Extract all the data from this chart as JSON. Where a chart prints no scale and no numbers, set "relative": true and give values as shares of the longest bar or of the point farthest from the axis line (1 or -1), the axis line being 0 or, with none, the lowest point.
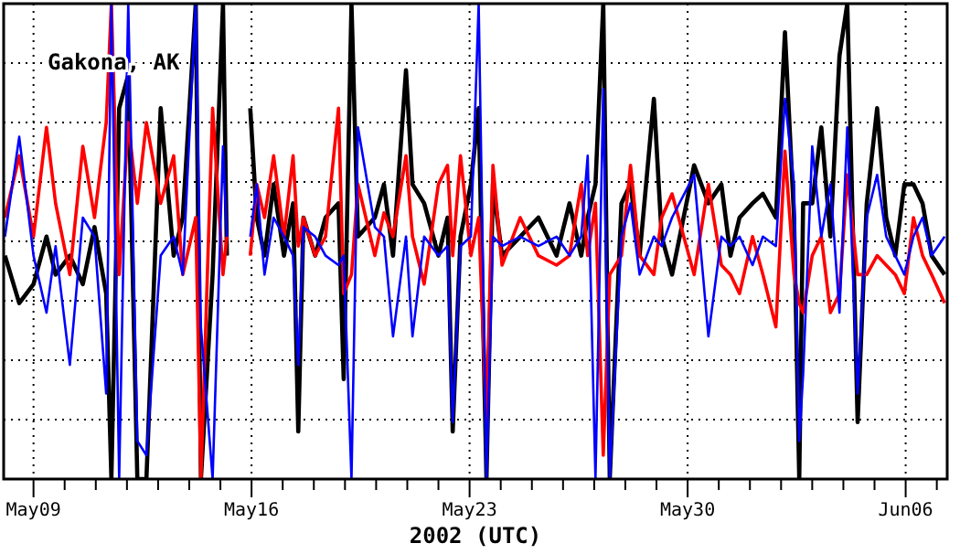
{
  "chart_data": {
    "type": "line",
    "title": "Gakona, AK",
    "xlabel": "2002 (UTC)",
    "relative": true,
    "grid": true,
    "xlim": [
      "2002-05-08T01:00",
      "2002-06-07T08:00"
    ],
    "xticks": [
      {
        "value": "2002-05-09",
        "label": "May09"
      },
      {
        "value": "2002-05-10",
        "label": null
      },
      {
        "value": "2002-05-11",
        "label": null
      },
      {
        "value": "2002-05-12",
        "label": null
      },
      {
        "value": "2002-05-13",
        "label": null
      },
      {
        "value": "2002-05-14",
        "label": null
      },
      {
        "value": "2002-05-15",
        "label": null
      },
      {
        "value": "2002-05-16",
        "label": "May16"
      },
      {
        "value": "2002-05-17",
        "label": null
      },
      {
        "value": "2002-05-18",
        "label": null
      },
      {
        "value": "2002-05-19",
        "label": null
      },
      {
        "value": "2002-05-20",
        "label": null
      },
      {
        "value": "2002-05-21",
        "label": null
      },
      {
        "value": "2002-05-22",
        "label": null
      },
      {
        "value": "2002-05-23",
        "label": "May23"
      },
      {
        "value": "2002-05-24",
        "label": null
      },
      {
        "value": "2002-05-25",
        "label": null
      },
      {
        "value": "2002-05-26",
        "label": null
      },
      {
        "value": "2002-05-27",
        "label": null
      },
      {
        "value": "2002-05-28",
        "label": null
      },
      {
        "value": "2002-05-29",
        "label": null
      },
      {
        "value": "2002-05-30",
        "label": "May30"
      },
      {
        "value": "2002-05-31",
        "label": null
      },
      {
        "value": "2002-06-01",
        "label": null
      },
      {
        "value": "2002-06-02",
        "label": null
      },
      {
        "value": "2002-06-03",
        "label": null
      },
      {
        "value": "2002-06-04",
        "label": null
      },
      {
        "value": "2002-06-05",
        "label": null
      },
      {
        "value": "2002-06-06",
        "label": "Jun06"
      },
      {
        "value": "2002-06-07",
        "label": null
      }
    ],
    "x": [
      "2002-05-08T02:00",
      "2002-05-08T13:00",
      "2002-05-09T00:00",
      "2002-05-09T10:00",
      "2002-05-09T17:00",
      "2002-05-10T04:00",
      "2002-05-10T14:00",
      "2002-05-10T23:00",
      "2002-05-11T08:00",
      "2002-05-11T12:00",
      "2002-05-11T18:00",
      "2002-05-12T01:00",
      "2002-05-12T08:00",
      "2002-05-12T15:00",
      "2002-05-13T02:00",
      "2002-05-13T12:00",
      "2002-05-13T19:00",
      "2002-05-14T05:00",
      "2002-05-14T09:00",
      "2002-05-14T18:00",
      "2002-05-15T02:00",
      "2002-05-15T05:00",
      "2002-05-15T12:00",
      "2002-05-15T23:00",
      "2002-05-16T04:00",
      "2002-05-16T10:00",
      "2002-05-16T17:00",
      "2002-05-17T01:00",
      "2002-05-17T08:00",
      "2002-05-17T12:00",
      "2002-05-17T16:00",
      "2002-05-18T01:00",
      "2002-05-18T09:00",
      "2002-05-18T19:00",
      "2002-05-18T23:00",
      "2002-05-19T05:00",
      "2002-05-19T10:00",
      "2002-05-19T23:00",
      "2002-05-20T06:00",
      "2002-05-20T13:00",
      "2002-05-20T23:00",
      "2002-05-21T04:00",
      "2002-05-21T13:00",
      "2002-05-22T00:00",
      "2002-05-22T07:00",
      "2002-05-22T11:00",
      "2002-05-22T17:00",
      "2002-05-23T01:00",
      "2002-05-23T07:00",
      "2002-05-23T13:00",
      "2002-05-23T18:00",
      "2002-05-24T01:00",
      "2002-05-24T15:00",
      "2002-05-25T05:00",
      "2002-05-25T19:00",
      "2002-05-26T05:00",
      "2002-05-26T14:00",
      "2002-05-26T19:00",
      "2002-05-27T01:00",
      "2002-05-27T07:00",
      "2002-05-27T12:00",
      "2002-05-27T21:00",
      "2002-05-28T04:00",
      "2002-05-28T11:00",
      "2002-05-28T22:00",
      "2002-05-29T04:00",
      "2002-05-29T12:00",
      "2002-05-30T05:00",
      "2002-05-30T16:00",
      "2002-05-31T02:00",
      "2002-05-31T09:00",
      "2002-05-31T16:00",
      "2002-06-01T02:00",
      "2002-06-01T10:00",
      "2002-06-01T20:00",
      "2002-06-02T03:00",
      "2002-06-02T10:00",
      "2002-06-02T14:00",
      "2002-06-02T17:00",
      "2002-06-03T00:00",
      "2002-06-03T07:00",
      "2002-06-03T14:00",
      "2002-06-03T21:00",
      "2002-06-04T03:00",
      "2002-06-04T11:00",
      "2002-06-04T18:00",
      "2002-06-05T02:00",
      "2002-06-05T09:00",
      "2002-06-05T16:00",
      "2002-06-05T23:00",
      "2002-06-06T06:00",
      "2002-06-06T13:00",
      "2002-06-06T20:00",
      "2002-06-07T06:00"
    ],
    "series": [
      {
        "color": "#000000",
        "values": [
          0.47,
          0.37,
          0.41,
          0.51,
          0.43,
          0.47,
          0.41,
          0.53,
          0.39,
          0,
          0.78,
          0.85,
          0,
          0,
          0.78,
          0.47,
          0.55,
          1,
          0,
          0.43,
          1,
          0.47,
          null,
          0.78,
          0.55,
          0.47,
          0.62,
          0.47,
          0.58,
          0.1,
          0.55,
          0.47,
          0.55,
          0.58,
          0.21,
          1,
          0.51,
          0.55,
          0.62,
          0.47,
          0.86,
          0.62,
          0.58,
          0.47,
          0.55,
          0.1,
          0.51,
          0.62,
          0.78,
          0,
          0.62,
          0.47,
          0.51,
          0.55,
          0.47,
          0.58,
          0.47,
          0.55,
          0.62,
          1,
          0,
          0.58,
          0.62,
          0.47,
          0.8,
          0.51,
          0.43,
          0.66,
          0.58,
          0.62,
          0.47,
          0.55,
          0.58,
          0.6,
          0.55,
          0.94,
          0.55,
          0,
          0.58,
          0.58,
          0.74,
          0.51,
          0.89,
          1,
          0.12,
          0.58,
          0.78,
          0.55,
          0.47,
          0.62,
          0.62,
          0.58,
          0.47,
          0.43
        ]
      },
      {
        "color": "#ff0000",
        "values": [
          0.55,
          0.68,
          0.51,
          0.74,
          0.58,
          0.43,
          0.7,
          0.55,
          0.75,
          1,
          0.43,
          0.75,
          0.58,
          0.75,
          0.58,
          0.68,
          0.43,
          0.55,
          0,
          0.78,
          0.43,
          0.51,
          null,
          0.47,
          0.62,
          0.55,
          0.68,
          0.51,
          0.68,
          0.49,
          0.55,
          0.47,
          0.51,
          0.78,
          0.39,
          0.43,
          0.62,
          0.47,
          0.56,
          0.51,
          0.68,
          0.51,
          0.41,
          0.62,
          0.66,
          0.47,
          0.68,
          0.47,
          0.55,
          0.12,
          0.66,
          0.45,
          0.55,
          0.47,
          0.45,
          0.47,
          0.62,
          0.47,
          0.58,
          0.05,
          0.43,
          0.47,
          0.66,
          0.47,
          0.43,
          0.55,
          0.6,
          0.43,
          0.62,
          0.45,
          0.43,
          0.39,
          0.51,
          0.43,
          0.32,
          0.69,
          0.43,
          0.37,
          0.35,
          0.47,
          0.51,
          0.35,
          0.39,
          0.64,
          0.43,
          0.43,
          0.47,
          0.45,
          0.43,
          0.39,
          0.55,
          0.47,
          0.43,
          0.37
        ]
      },
      {
        "color": "#0000ff",
        "values": [
          0.51,
          0.72,
          0.47,
          0.35,
          0.49,
          0.24,
          0.55,
          0.51,
          0.18,
          1,
          0,
          1,
          0.08,
          0.05,
          0.47,
          0.51,
          0.43,
          1,
          0.32,
          0,
          0.7,
          0.51,
          null,
          0.51,
          0.62,
          0.43,
          0.55,
          0.51,
          0.47,
          0.24,
          0.53,
          0.51,
          0.47,
          0.45,
          0.47,
          0,
          0.74,
          0.53,
          0.51,
          0.3,
          0.51,
          0.3,
          0.51,
          0.47,
          0.49,
          0.12,
          0.49,
          0.51,
          1,
          0,
          0.51,
          0.49,
          0.51,
          0.49,
          0.51,
          0.47,
          0.51,
          0.68,
          0,
          0.82,
          0,
          0.51,
          0.58,
          0.43,
          0.51,
          0.49,
          0.55,
          0.64,
          0.3,
          0.51,
          0.49,
          0.51,
          0.45,
          0.51,
          0.49,
          0.8,
          0.62,
          0.08,
          0.22,
          0.7,
          0.51,
          0.62,
          0.35,
          0.74,
          0.18,
          0.55,
          0.64,
          0.51,
          0.47,
          0.43,
          0.51,
          0.55,
          0.47,
          0.51
        ]
      }
    ]
  }
}
